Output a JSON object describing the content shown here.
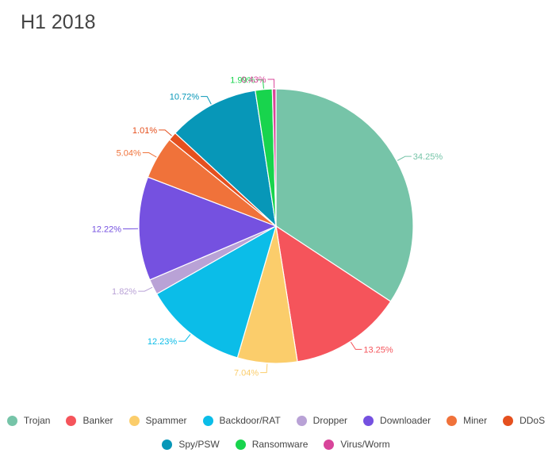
{
  "chart_data": {
    "type": "pie",
    "title": "H1 2018",
    "legend_position": "bottom",
    "slices": [
      {
        "label": "Trojan",
        "value": 34.25,
        "display": "34.25%",
        "color": "#76c4a8"
      },
      {
        "label": "Banker",
        "value": 13.25,
        "display": "13.25%",
        "color": "#f5545b"
      },
      {
        "label": "Spammer",
        "value": 7.04,
        "display": "7.04%",
        "color": "#fbcd6b"
      },
      {
        "label": "Backdoor/RAT",
        "value": 12.23,
        "display": "12.23%",
        "color": "#0bbde8"
      },
      {
        "label": "Dropper",
        "value": 1.82,
        "display": "1.82%",
        "color": "#b9a2d6"
      },
      {
        "label": "Downloader",
        "value": 12.22,
        "display": "12.22%",
        "color": "#7551e0"
      },
      {
        "label": "Miner",
        "value": 5.04,
        "display": "5.04%",
        "color": "#f0723a"
      },
      {
        "label": "DDoS",
        "value": 1.01,
        "display": "1.01%",
        "color": "#e5501e"
      },
      {
        "label": "Spy/PSW",
        "value": 10.72,
        "display": "10.72%",
        "color": "#0797b8"
      },
      {
        "label": "Ransomware",
        "value": 1.99,
        "display": "1.99%",
        "color": "#18d44d"
      },
      {
        "label": "Virus/Worm",
        "value": 0.43,
        "display": "0.43%",
        "color": "#d8459a"
      }
    ]
  }
}
